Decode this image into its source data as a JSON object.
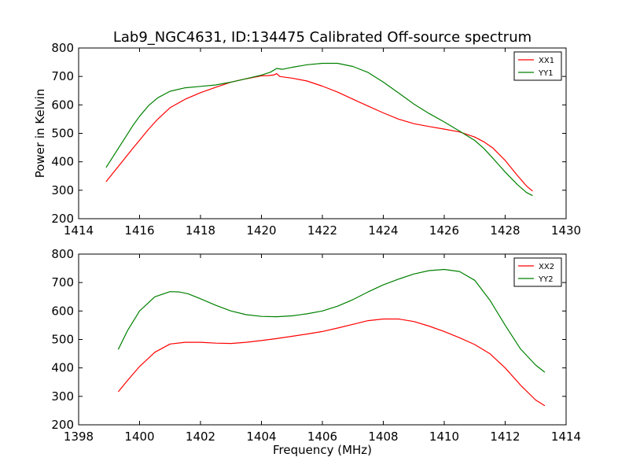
{
  "figure": {
    "title": "Lab9_NGC4631, ID:134475 Calibrated Off-source spectrum"
  },
  "chart_data": [
    {
      "type": "line",
      "title": "Lab9_NGC4631, ID:134475 Calibrated Off-source spectrum",
      "xlabel": "",
      "ylabel": "Power in Kelvin",
      "xlim": [
        1414,
        1430
      ],
      "ylim": [
        200,
        800
      ],
      "xticks": [
        "1414",
        "1416",
        "1418",
        "1420",
        "1422",
        "1424",
        "1426",
        "1428",
        "1430"
      ],
      "yticks": [
        "200",
        "300",
        "400",
        "500",
        "600",
        "700",
        "800"
      ],
      "grid": false,
      "legend": "top-right",
      "series": [
        {
          "name": "XX1",
          "color": "#ff0000",
          "x": [
            1414.9,
            1415.2,
            1415.5,
            1415.8,
            1416.0,
            1416.3,
            1416.6,
            1417.0,
            1417.5,
            1418.0,
            1418.5,
            1419.0,
            1419.5,
            1420.0,
            1420.2,
            1420.4,
            1420.5,
            1420.6,
            1420.8,
            1421.0,
            1421.5,
            1422.0,
            1422.5,
            1423.0,
            1423.5,
            1424.0,
            1424.5,
            1425.0,
            1425.5,
            1426.0,
            1426.5,
            1427.0,
            1427.3,
            1427.6,
            1428.0,
            1428.4,
            1428.7,
            1428.9
          ],
          "y": [
            330,
            370,
            410,
            450,
            476,
            515,
            550,
            590,
            620,
            643,
            662,
            680,
            692,
            702,
            703,
            705,
            710,
            700,
            697,
            694,
            684,
            666,
            645,
            620,
            596,
            572,
            550,
            534,
            524,
            515,
            505,
            487,
            470,
            448,
            405,
            352,
            315,
            297
          ]
        },
        {
          "name": "YY1",
          "color": "#008000",
          "x": [
            1414.9,
            1415.2,
            1415.5,
            1415.8,
            1416.0,
            1416.3,
            1416.6,
            1417.0,
            1417.5,
            1418.0,
            1418.5,
            1419.0,
            1419.5,
            1420.0,
            1420.3,
            1420.5,
            1420.7,
            1421.0,
            1421.5,
            1422.0,
            1422.5,
            1423.0,
            1423.5,
            1424.0,
            1424.5,
            1425.0,
            1425.5,
            1426.0,
            1426.5,
            1427.0,
            1427.3,
            1427.6,
            1428.0,
            1428.4,
            1428.7,
            1428.9
          ],
          "y": [
            380,
            430,
            480,
            530,
            560,
            598,
            625,
            648,
            660,
            665,
            670,
            680,
            692,
            705,
            715,
            728,
            725,
            732,
            741,
            746,
            746,
            735,
            714,
            680,
            642,
            603,
            570,
            540,
            508,
            475,
            447,
            412,
            364,
            320,
            292,
            281
          ]
        }
      ]
    },
    {
      "type": "line",
      "title": "",
      "xlabel": "Frequency (MHz)",
      "ylabel": "",
      "xlim": [
        1398,
        1414
      ],
      "ylim": [
        200,
        800
      ],
      "xticks": [
        "1398",
        "1400",
        "1402",
        "1404",
        "1406",
        "1408",
        "1410",
        "1412",
        "1414"
      ],
      "yticks": [
        "200",
        "300",
        "400",
        "500",
        "600",
        "700",
        "800"
      ],
      "grid": false,
      "legend": "top-right",
      "series": [
        {
          "name": "XX2",
          "color": "#ff0000",
          "x": [
            1399.3,
            1399.6,
            1400.0,
            1400.5,
            1401.0,
            1401.5,
            1402.0,
            1402.5,
            1403.0,
            1403.5,
            1404.0,
            1404.5,
            1405.0,
            1405.5,
            1406.0,
            1406.5,
            1407.0,
            1407.5,
            1408.0,
            1408.5,
            1409.0,
            1409.5,
            1410.0,
            1410.5,
            1411.0,
            1411.5,
            1412.0,
            1412.5,
            1413.0,
            1413.3
          ],
          "y": [
            316,
            355,
            405,
            455,
            484,
            490,
            490,
            487,
            486,
            490,
            496,
            503,
            511,
            519,
            528,
            540,
            553,
            566,
            572,
            572,
            563,
            547,
            528,
            506,
            482,
            450,
            400,
            340,
            287,
            267
          ]
        },
        {
          "name": "YY2",
          "color": "#008000",
          "x": [
            1399.3,
            1399.6,
            1400.0,
            1400.5,
            1401.0,
            1401.3,
            1401.6,
            1402.0,
            1402.5,
            1403.0,
            1403.5,
            1404.0,
            1404.5,
            1405.0,
            1405.5,
            1406.0,
            1406.5,
            1407.0,
            1407.5,
            1408.0,
            1408.5,
            1409.0,
            1409.5,
            1410.0,
            1410.5,
            1411.0,
            1411.5,
            1412.0,
            1412.5,
            1413.0,
            1413.3
          ],
          "y": [
            465,
            530,
            600,
            650,
            668,
            667,
            660,
            643,
            620,
            600,
            587,
            581,
            580,
            583,
            590,
            600,
            617,
            640,
            667,
            692,
            712,
            730,
            742,
            746,
            739,
            708,
            638,
            550,
            467,
            410,
            385
          ]
        }
      ]
    }
  ]
}
